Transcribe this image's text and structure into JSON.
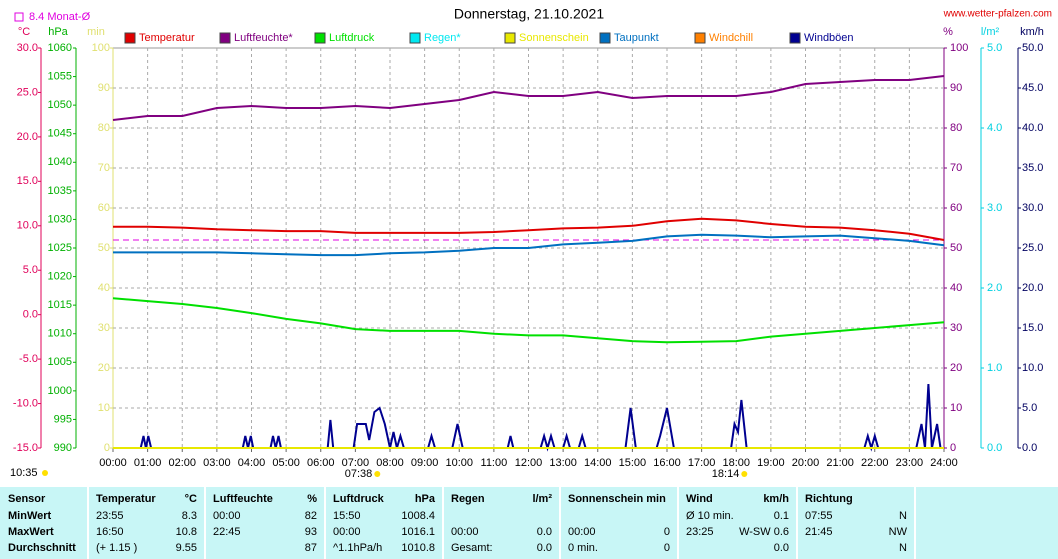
{
  "chart_data": {
    "type": "line",
    "title": "Donnerstag, 21.10.2021",
    "source": "www.wetter-pfalzen.com",
    "monthly_average": {
      "label": "8.4 Monat-Ø",
      "value": 8.4,
      "axis": 0,
      "color": "#e000e0"
    },
    "current_time": "10:35",
    "sunrise": {
      "x": 7.633,
      "label": "07:38"
    },
    "sunset": {
      "x": 18.233,
      "label": "18:14"
    },
    "grid": true,
    "xlim": [
      0,
      24
    ],
    "xticks": [
      {
        "value": 0,
        "label": "00:00"
      },
      {
        "value": 1,
        "label": "01:00"
      },
      {
        "value": 2,
        "label": "02:00"
      },
      {
        "value": 3,
        "label": "03:00"
      },
      {
        "value": 4,
        "label": "04:00"
      },
      {
        "value": 5,
        "label": "05:00"
      },
      {
        "value": 6,
        "label": "06:00"
      },
      {
        "value": 7,
        "label": "07:00"
      },
      {
        "value": 8,
        "label": "08:00"
      },
      {
        "value": 9,
        "label": "09:00"
      },
      {
        "value": 10,
        "label": "10:00"
      },
      {
        "value": 11,
        "label": "11:00"
      },
      {
        "value": 12,
        "label": "12:00"
      },
      {
        "value": 13,
        "label": "13:00"
      },
      {
        "value": 14,
        "label": "14:00"
      },
      {
        "value": 15,
        "label": "15:00"
      },
      {
        "value": 16,
        "label": "16:00"
      },
      {
        "value": 17,
        "label": "17:00"
      },
      {
        "value": 18,
        "label": "18:00"
      },
      {
        "value": 19,
        "label": "19:00"
      },
      {
        "value": 20,
        "label": "20:00"
      },
      {
        "value": 21,
        "label": "21:00"
      },
      {
        "value": 22,
        "label": "22:00"
      },
      {
        "value": 23,
        "label": "23:00"
      },
      {
        "value": 24,
        "label": "24:00"
      }
    ],
    "yaxes": [
      {
        "name": "°C",
        "color": "#e0005a",
        "lim": [
          -15,
          30
        ],
        "ticks": [
          {
            "value": -15,
            "label": "-15.0"
          },
          {
            "value": -10,
            "label": "-10.0"
          },
          {
            "value": -5,
            "label": "-5.0"
          },
          {
            "value": 0,
            "label": "0.0"
          },
          {
            "value": 5,
            "label": "5.0"
          },
          {
            "value": 10,
            "label": "10.0"
          },
          {
            "value": 15,
            "label": "15.0"
          },
          {
            "value": 20,
            "label": "20.0"
          },
          {
            "value": 25,
            "label": "25.0"
          },
          {
            "value": 30,
            "label": "30.0"
          }
        ]
      },
      {
        "name": "hPa",
        "color": "#00b000",
        "lim": [
          990,
          1060
        ],
        "ticks": [
          990,
          995,
          1000,
          1005,
          1010,
          1015,
          1020,
          1025,
          1030,
          1035,
          1040,
          1045,
          1050,
          1055,
          1060
        ]
      },
      {
        "name": "min",
        "color": "#e0e070",
        "lim": [
          0,
          100
        ],
        "ticks": [
          0,
          10,
          20,
          30,
          40,
          50,
          60,
          70,
          80,
          90,
          100
        ]
      },
      {
        "name": "%",
        "color": "#800080",
        "lim": [
          0,
          100
        ],
        "ticks": [
          0,
          10,
          20,
          30,
          40,
          50,
          60,
          70,
          80,
          90,
          100
        ]
      },
      {
        "name": "l/m²",
        "color": "#00d0e0",
        "lim": [
          0,
          5
        ],
        "ticks": [
          {
            "value": 0,
            "label": "0.0"
          },
          {
            "value": 1,
            "label": "1.0"
          },
          {
            "value": 2,
            "label": "2.0"
          },
          {
            "value": 3,
            "label": "3.0"
          },
          {
            "value": 4,
            "label": "4.0"
          },
          {
            "value": 5,
            "label": "5.0"
          }
        ]
      },
      {
        "name": "km/h",
        "color": "#000060",
        "lim": [
          0,
          50
        ],
        "ticks": [
          {
            "value": 0,
            "label": "0.0"
          },
          {
            "value": 5,
            "label": "5.0"
          },
          {
            "value": 10,
            "label": "10.0"
          },
          {
            "value": 15,
            "label": "15.0"
          },
          {
            "value": 20,
            "label": "20.0"
          },
          {
            "value": 25,
            "label": "25.0"
          },
          {
            "value": 30,
            "label": "30.0"
          },
          {
            "value": 35,
            "label": "35.0"
          },
          {
            "value": 40,
            "label": "40.0"
          },
          {
            "value": 45,
            "label": "45.0"
          },
          {
            "value": 50,
            "label": "50.0"
          }
        ]
      }
    ],
    "x": [
      0,
      1,
      2,
      3,
      4,
      5,
      6,
      7,
      8,
      9,
      10,
      11,
      12,
      13,
      14,
      15,
      16,
      17,
      18,
      19,
      20,
      21,
      22,
      23,
      24
    ],
    "series": [
      {
        "name": "Temperatur",
        "color": "#e00000",
        "axis": 0,
        "values": [
          9.9,
          9.9,
          9.8,
          9.6,
          9.5,
          9.4,
          9.4,
          9.2,
          9.2,
          9.2,
          9.2,
          9.3,
          9.5,
          9.7,
          9.8,
          10.0,
          10.5,
          10.8,
          10.6,
          10.2,
          9.9,
          9.8,
          9.5,
          9.1,
          8.4
        ]
      },
      {
        "name": "Luftfeuchte*",
        "color": "#800080",
        "axis": 3,
        "values": [
          82,
          83,
          83,
          85,
          85.5,
          85,
          85,
          85.5,
          85,
          86,
          87,
          89,
          88,
          88,
          89,
          87.5,
          88,
          88,
          88,
          89,
          91,
          91.5,
          92,
          92,
          93
        ]
      },
      {
        "name": "Luftdruck",
        "color": "#00e000",
        "axis": 1,
        "values": [
          1016.2,
          1015.7,
          1015.2,
          1014.5,
          1013.6,
          1012.6,
          1011.8,
          1010.8,
          1010.5,
          1010.5,
          1010.5,
          1010.0,
          1009.7,
          1009.7,
          1009.2,
          1008.7,
          1008.5,
          1008.6,
          1008.7,
          1009.5,
          1010.0,
          1010.5,
          1011.0,
          1011.5,
          1012.0
        ]
      },
      {
        "name": "Regen*",
        "color": "#00e8f0",
        "axis": 4,
        "values": [
          0,
          0,
          0,
          0,
          0,
          0,
          0,
          0,
          0,
          0,
          0,
          0,
          0,
          0,
          0,
          0,
          0,
          0,
          0,
          0,
          0,
          0,
          0,
          0,
          0
        ]
      },
      {
        "name": "Sonnenschein",
        "color": "#e8e800",
        "axis": 2,
        "values": [
          0,
          0,
          0,
          0,
          0,
          0,
          0,
          0,
          0,
          0,
          0,
          0,
          0,
          0,
          0,
          0,
          0,
          0,
          0,
          0,
          0,
          0,
          0,
          0,
          0
        ]
      },
      {
        "name": "Taupunkt",
        "color": "#0070c0",
        "axis": 0,
        "values": [
          7.0,
          7.0,
          7.0,
          7.0,
          6.9,
          6.8,
          6.7,
          6.7,
          6.9,
          7.0,
          7.2,
          7.5,
          7.5,
          7.9,
          8.1,
          8.3,
          8.8,
          9.0,
          8.9,
          8.7,
          8.8,
          8.9,
          8.6,
          8.3,
          7.8
        ]
      },
      {
        "name": "Windchill",
        "color": "#ff8000",
        "axis": 0,
        "values": [
          null,
          null,
          null,
          null,
          null,
          null,
          null,
          null,
          null,
          null,
          null,
          null,
          null,
          null,
          null,
          null,
          null,
          null,
          null,
          null,
          null,
          null,
          null,
          null,
          null
        ]
      },
      {
        "name": "Windböen",
        "color": "#000090",
        "axis": 5,
        "x": [
          0,
          0.8,
          0.88,
          0.95,
          1.02,
          1.1,
          3.75,
          3.82,
          3.9,
          3.98,
          4.05,
          4.55,
          4.62,
          4.7,
          4.78,
          4.85,
          6.2,
          6.28,
          6.36,
          6.95,
          7.05,
          7.3,
          7.4,
          7.55,
          7.7,
          7.85,
          8.0,
          8.1,
          8.2,
          8.3,
          8.4,
          9.1,
          9.2,
          9.3,
          9.8,
          9.95,
          10.1,
          11.4,
          11.48,
          11.56,
          12.35,
          12.45,
          12.55,
          12.65,
          12.75,
          13.0,
          13.1,
          13.2,
          13.45,
          13.55,
          13.65,
          14.8,
          14.95,
          15.1,
          15.7,
          15.8,
          16.0,
          16.2,
          17.85,
          17.95,
          18.05,
          18.15,
          18.3,
          21.7,
          21.8,
          21.9,
          22.0,
          22.1,
          23.2,
          23.35,
          23.45,
          23.55,
          23.65,
          23.8,
          23.9,
          24
        ],
        "values": [
          0,
          0,
          1.5,
          0,
          1.5,
          0,
          0,
          1.5,
          0,
          1.5,
          0,
          0,
          1.5,
          0,
          1.5,
          0,
          0,
          3.5,
          0,
          0,
          3,
          3,
          1,
          4.5,
          5,
          3,
          0,
          2,
          0,
          1.5,
          0,
          0,
          1.5,
          0,
          0,
          3,
          0,
          0,
          1.5,
          0,
          0,
          1.5,
          0,
          1.5,
          0,
          0,
          1.5,
          0,
          0,
          1.5,
          0,
          0,
          5,
          0,
          0,
          1.5,
          5,
          0,
          0,
          3,
          2,
          6,
          0,
          0,
          1.5,
          0,
          1.5,
          0,
          0,
          3,
          0,
          8,
          0,
          3,
          0,
          0
        ]
      }
    ]
  },
  "table": {
    "headers": [
      {
        "name": "Sensor",
        "unit": null
      },
      {
        "name": "Temperatur",
        "unit": "°C"
      },
      {
        "name": "Luftfeuchte",
        "unit": "%"
      },
      {
        "name": "Luftdruck",
        "unit": "hPa"
      },
      {
        "name": "Regen",
        "unit": "l/m²"
      },
      {
        "name": "Sonnenschein min",
        "unit": null
      },
      {
        "name": "Wind",
        "unit": "km/h"
      },
      {
        "name": "Richtung",
        "unit": null
      }
    ],
    "rows": [
      {
        "label": "MinWert",
        "cells": [
          [
            "23:55",
            "8.3"
          ],
          [
            "00:00",
            "82"
          ],
          [
            "15:50",
            "1008.4"
          ],
          [
            null,
            null
          ],
          [
            null,
            null
          ],
          [
            "Ø 10 min.",
            "0.1"
          ],
          [
            "07:55",
            "N"
          ]
        ]
      },
      {
        "label": "MaxWert",
        "cells": [
          [
            "16:50",
            "10.8"
          ],
          [
            "22:45",
            "93"
          ],
          [
            "00:00",
            "1016.1"
          ],
          [
            "00:00",
            "0.0"
          ],
          [
            "00:00",
            "0"
          ],
          [
            "23:25",
            "W-SW 0.6"
          ],
          [
            "21:45",
            "NW"
          ]
        ]
      },
      {
        "label": "Durchschnitt",
        "cells": [
          [
            "(+ 1.15 )",
            "9.55"
          ],
          [
            null,
            "87"
          ],
          [
            "^1.1hPa/h",
            "1010.8"
          ],
          [
            "Gesamt:",
            "0.0"
          ],
          [
            "0 min.",
            "0"
          ],
          [
            null,
            "0.0"
          ],
          [
            null,
            "N"
          ]
        ]
      }
    ]
  }
}
